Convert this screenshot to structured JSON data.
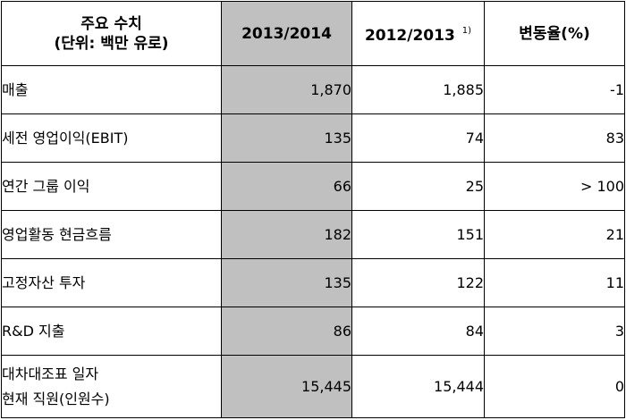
{
  "header": {
    "label_line1": "주요 수치",
    "label_line2": "(단위: 백만 유로)",
    "current": "2013/2014",
    "previous": "2012/2013",
    "previous_note": "1)",
    "change": "변동율(%)"
  },
  "rows": [
    {
      "label": "매출",
      "current": "1,870",
      "previous": "1,885",
      "change": "-1"
    },
    {
      "label": "세전 영업이익(EBIT)",
      "current": "135",
      "previous": "74",
      "change": "83"
    },
    {
      "label": "연간 그룹 이익",
      "current": "66",
      "previous": "25",
      "change": "> 100"
    },
    {
      "label": "영업활동 현금흐름",
      "current": "182",
      "previous": "151",
      "change": "21"
    },
    {
      "label": "고정자산 투자",
      "current": "135",
      "previous": "122",
      "change": "11"
    },
    {
      "label": "R&D 지출",
      "current": "86",
      "previous": "84",
      "change": "3"
    },
    {
      "label_line1": "대차대조표 일자",
      "label_line2": "현재 직원(인원수)",
      "current": "15,445",
      "previous": "15,444",
      "change": "0"
    }
  ],
  "colors": {
    "highlight_column": "#c0c0c0",
    "border": "#000000"
  }
}
